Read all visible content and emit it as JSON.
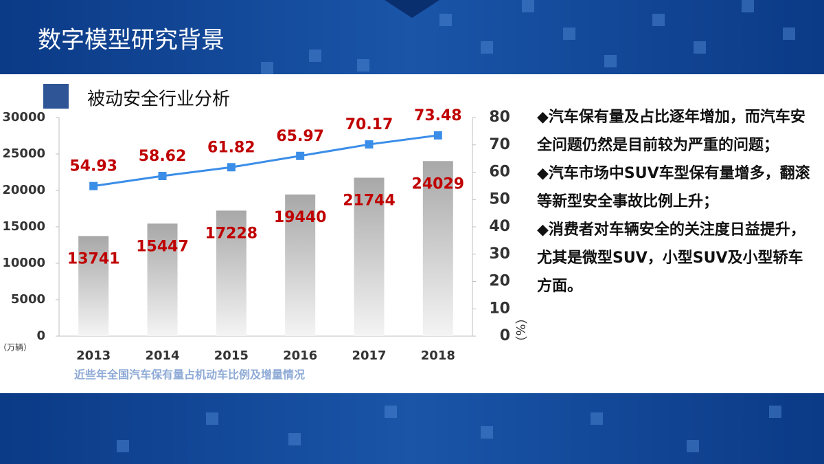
{
  "header": {
    "title": "数字模型研究背景"
  },
  "section": {
    "title": "被动安全行业分析"
  },
  "chart_data": {
    "type": "bar",
    "categories": [
      "2013",
      "2014",
      "2015",
      "2016",
      "2017",
      "2018"
    ],
    "series": [
      {
        "type": "bar",
        "color": "#c8c8c8",
        "values": [
          13741,
          15447,
          17228,
          19440,
          21744,
          24029
        ]
      },
      {
        "type": "line",
        "axis": "y2",
        "color": "#3b8ee8",
        "values": [
          54.93,
          58.62,
          61.82,
          65.97,
          70.17,
          73.48
        ]
      }
    ],
    "ylim": [
      0,
      30000
    ],
    "yticks": [
      0,
      5000,
      10000,
      15000,
      20000,
      25000,
      30000
    ],
    "y2lim": [
      0,
      80
    ],
    "y2ticks": [
      0,
      10,
      20,
      30,
      40,
      50,
      60,
      70,
      80
    ],
    "y_label": "（万辆）",
    "y2_label": "（%）",
    "label_color": "#c00000",
    "grid": false,
    "caption": "近些年全国汽车保有量占机动车比例及增量情况"
  },
  "bullets": [
    "◆汽车保有量及占比逐年增加，而汽车安全问题仍然是目前较为严重的问题；",
    "◆汽车市场中SUV车型保有量增多，翻滚等新型安全事故比例上升；",
    "◆消费者对车辆安全的关注度日益提升，尤其是微型SUV，小型SUV及小型轿车方面。"
  ]
}
